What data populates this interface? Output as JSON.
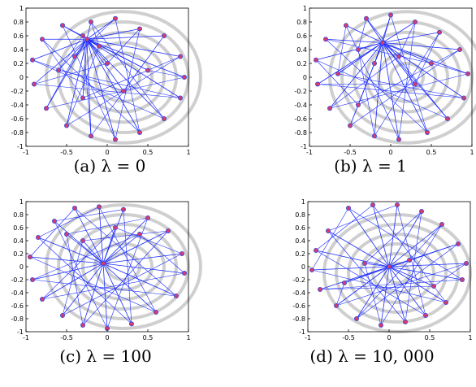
{
  "colors": {
    "ring": "#cfcfcf",
    "edge": "#1a2bff",
    "node_fill": "#d63a6e",
    "node_stroke": "#3b4bd8",
    "axis": "#000000"
  },
  "chart_data": [
    {
      "type": "scatter",
      "caption": "(a) λ = 0",
      "xlim": [
        -1,
        1
      ],
      "ylim": [
        -1,
        1
      ],
      "xticks": [
        "-1",
        "-0.5",
        "0",
        "0.5",
        "1"
      ],
      "yticks": [
        "1",
        "0.8",
        "0.6",
        "0.4",
        "0.2",
        "0",
        "-0.2",
        "-0.4",
        "-0.6",
        "-0.8",
        "-1"
      ],
      "rings": {
        "center": [
          0.2,
          0.0
        ],
        "radii": [
          0.2,
          0.35,
          0.5,
          0.65,
          0.8,
          0.95
        ]
      },
      "hub": [
        -0.25,
        0.55
      ],
      "nodes": [
        [
          -0.2,
          0.8
        ],
        [
          0.1,
          0.85
        ],
        [
          0.4,
          0.7
        ],
        [
          0.7,
          0.6
        ],
        [
          0.9,
          0.3
        ],
        [
          0.95,
          0.0
        ],
        [
          0.9,
          -0.3
        ],
        [
          0.7,
          -0.6
        ],
        [
          0.4,
          -0.8
        ],
        [
          0.1,
          -0.9
        ],
        [
          -0.2,
          -0.85
        ],
        [
          -0.5,
          -0.7
        ],
        [
          -0.75,
          -0.45
        ],
        [
          -0.9,
          -0.1
        ],
        [
          -0.92,
          0.25
        ],
        [
          -0.8,
          0.55
        ],
        [
          -0.55,
          0.75
        ],
        [
          -0.3,
          0.6
        ],
        [
          -0.1,
          0.45
        ],
        [
          -0.4,
          0.3
        ],
        [
          0.0,
          0.2
        ],
        [
          0.2,
          -0.2
        ],
        [
          -0.3,
          -0.3
        ],
        [
          0.5,
          0.1
        ],
        [
          -0.6,
          0.1
        ]
      ]
    },
    {
      "type": "scatter",
      "caption": "(b) λ = 1",
      "xlim": [
        -1,
        1
      ],
      "ylim": [
        -1,
        1
      ],
      "xticks": [
        "-1",
        "-0.5",
        "0",
        "0.5",
        "1"
      ],
      "yticks": [
        "1",
        "0.8",
        "0.6",
        "0.4",
        "0.2",
        "0",
        "-0.2",
        "-0.4",
        "-0.6",
        "-0.8",
        "-1"
      ],
      "rings": {
        "center": [
          0.2,
          0.0
        ],
        "radii": [
          0.2,
          0.35,
          0.5,
          0.65,
          0.8,
          0.95
        ]
      },
      "hub": [
        -0.1,
        0.5
      ],
      "nodes": [
        [
          -0.3,
          0.85
        ],
        [
          0.0,
          0.9
        ],
        [
          0.3,
          0.8
        ],
        [
          0.6,
          0.65
        ],
        [
          0.85,
          0.4
        ],
        [
          0.95,
          0.05
        ],
        [
          0.9,
          -0.3
        ],
        [
          0.7,
          -0.6
        ],
        [
          0.45,
          -0.8
        ],
        [
          0.1,
          -0.9
        ],
        [
          -0.2,
          -0.85
        ],
        [
          -0.5,
          -0.7
        ],
        [
          -0.75,
          -0.45
        ],
        [
          -0.9,
          -0.1
        ],
        [
          -0.92,
          0.25
        ],
        [
          -0.8,
          0.55
        ],
        [
          -0.55,
          0.75
        ],
        [
          -0.4,
          0.4
        ],
        [
          -0.2,
          0.2
        ],
        [
          0.1,
          0.3
        ],
        [
          0.3,
          -0.1
        ],
        [
          -0.4,
          -0.4
        ],
        [
          0.5,
          0.2
        ],
        [
          -0.65,
          0.05
        ]
      ]
    },
    {
      "type": "scatter",
      "caption": "(c) λ = 100",
      "xlim": [
        -1,
        1
      ],
      "ylim": [
        -1,
        1
      ],
      "xticks": [
        "-1",
        "-0.5",
        "0",
        "0.5",
        "1"
      ],
      "yticks": [
        "1",
        "0.8",
        "0.6",
        "0.4",
        "0.2",
        "0",
        "-0.2",
        "-0.4",
        "-0.6",
        "-0.8",
        "-1"
      ],
      "rings": {
        "center": [
          0.2,
          0.0
        ],
        "radii": [
          0.2,
          0.35,
          0.5,
          0.65,
          0.8,
          0.95
        ]
      },
      "hub": [
        -0.05,
        0.05
      ],
      "nodes": [
        [
          -0.4,
          0.9
        ],
        [
          -0.1,
          0.92
        ],
        [
          0.2,
          0.88
        ],
        [
          0.5,
          0.75
        ],
        [
          0.75,
          0.55
        ],
        [
          0.92,
          0.2
        ],
        [
          0.95,
          -0.1
        ],
        [
          0.85,
          -0.45
        ],
        [
          0.6,
          -0.7
        ],
        [
          0.3,
          -0.88
        ],
        [
          0.0,
          -0.95
        ],
        [
          -0.3,
          -0.9
        ],
        [
          -0.55,
          -0.75
        ],
        [
          -0.8,
          -0.5
        ],
        [
          -0.92,
          -0.2
        ],
        [
          -0.95,
          0.15
        ],
        [
          -0.85,
          0.45
        ],
        [
          -0.65,
          0.7
        ],
        [
          -0.5,
          0.5
        ],
        [
          -0.3,
          0.4
        ],
        [
          0.1,
          0.6
        ],
        [
          0.4,
          0.5
        ]
      ]
    },
    {
      "type": "scatter",
      "caption": "(d) λ = 10, 000",
      "xlim": [
        -1,
        1
      ],
      "ylim": [
        -1,
        1
      ],
      "xticks": [
        "-1",
        "-0.5",
        "0",
        "0.5",
        "1"
      ],
      "yticks": [
        "1",
        "0.8",
        "0.6",
        "0.4",
        "0.2",
        "0",
        "-0.2",
        "-0.4",
        "-0.6",
        "-0.8",
        "-1"
      ],
      "rings": {
        "center": [
          0.1,
          -0.1
        ],
        "radii": [
          0.15,
          0.3,
          0.45,
          0.6,
          0.75,
          0.9
        ]
      },
      "hub": [
        0.0,
        0.0
      ],
      "nodes": [
        [
          -0.5,
          0.9
        ],
        [
          -0.2,
          0.95
        ],
        [
          0.1,
          0.95
        ],
        [
          0.4,
          0.85
        ],
        [
          0.65,
          0.65
        ],
        [
          0.85,
          0.35
        ],
        [
          0.95,
          0.05
        ],
        [
          0.9,
          -0.2
        ],
        [
          0.7,
          -0.55
        ],
        [
          0.45,
          -0.75
        ],
        [
          0.2,
          -0.85
        ],
        [
          -0.1,
          -0.9
        ],
        [
          -0.4,
          -0.8
        ],
        [
          -0.65,
          -0.6
        ],
        [
          -0.85,
          -0.35
        ],
        [
          -0.95,
          -0.05
        ],
        [
          -0.9,
          0.25
        ],
        [
          -0.75,
          0.55
        ],
        [
          -0.3,
          0.05
        ],
        [
          0.25,
          0.1
        ],
        [
          -0.55,
          -0.25
        ],
        [
          0.55,
          -0.3
        ]
      ]
    }
  ]
}
